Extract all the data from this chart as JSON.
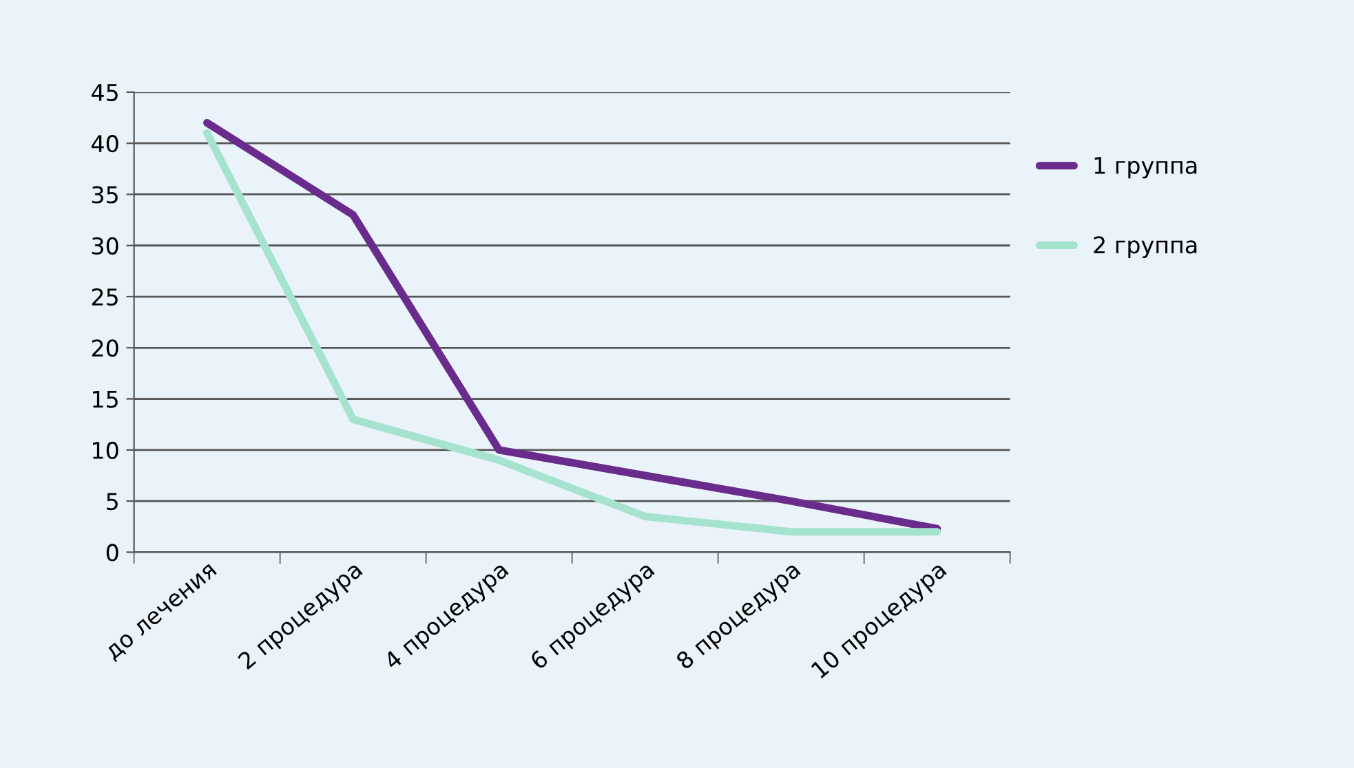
{
  "chart_data": {
    "type": "line",
    "categories": [
      "до лечения",
      "2 процедура",
      "4 процедура",
      "6 процедура",
      "8 процедура",
      "10 процедура"
    ],
    "series": [
      {
        "name": "1 группа",
        "color": "#6a2c8c",
        "values": [
          42,
          33,
          10,
          7.5,
          5,
          2.3
        ]
      },
      {
        "name": "2 группа",
        "color": "#a6e3cf",
        "values": [
          41,
          13,
          9,
          3.5,
          2,
          2
        ]
      }
    ],
    "ylim": [
      0,
      45
    ],
    "yticks": [
      0,
      5,
      10,
      15,
      20,
      25,
      30,
      35,
      40,
      45
    ],
    "grid": "y",
    "legend": "right",
    "marker": "none",
    "line_style": "solid"
  }
}
